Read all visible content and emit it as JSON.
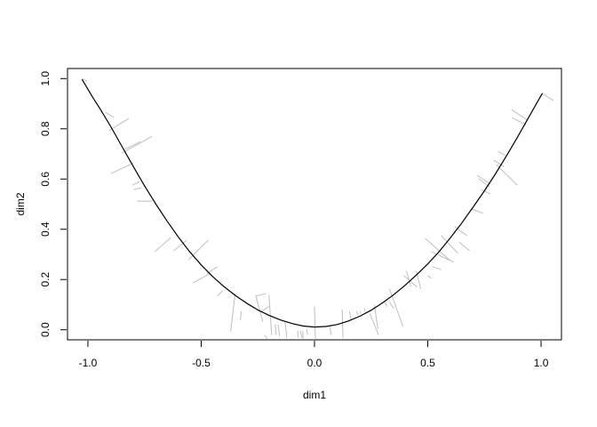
{
  "figure": {
    "background": "#ffffff"
  },
  "colors": {
    "curve": "#000000",
    "whiskers": "#bebebe",
    "axis": "#000000",
    "text": "#000000",
    "background": "#ffffff"
  },
  "chart_data": {
    "type": "line",
    "title": "",
    "xlabel": "dim1",
    "ylabel": "dim2",
    "xlim": [
      -1.09,
      1.09
    ],
    "ylim": [
      -0.04,
      1.04
    ],
    "grid": false,
    "legend": null,
    "x_ticks": [
      -1.0,
      -0.5,
      0.0,
      0.5,
      1.0
    ],
    "x_tick_labels": [
      "-1.0",
      "-0.5",
      "0.0",
      "0.5",
      "1.0"
    ],
    "y_ticks": [
      0.0,
      0.2,
      0.4,
      0.6,
      0.8,
      1.0
    ],
    "y_tick_labels": [
      "0.0",
      "0.2",
      "0.4",
      "0.6",
      "0.8",
      "1.0"
    ],
    "series": [
      {
        "name": "principal-curve",
        "type": "line",
        "color": "#000000",
        "points": [
          [
            -1.025,
            0.995
          ],
          [
            -0.975,
            0.92
          ],
          [
            -0.95,
            0.885
          ],
          [
            -0.9,
            0.81
          ],
          [
            -0.85,
            0.73
          ],
          [
            -0.8,
            0.65
          ],
          [
            -0.75,
            0.573
          ],
          [
            -0.7,
            0.5
          ],
          [
            -0.65,
            0.432
          ],
          [
            -0.6,
            0.368
          ],
          [
            -0.55,
            0.31
          ],
          [
            -0.5,
            0.258
          ],
          [
            -0.45,
            0.212
          ],
          [
            -0.4,
            0.172
          ],
          [
            -0.35,
            0.137
          ],
          [
            -0.3,
            0.106
          ],
          [
            -0.25,
            0.079
          ],
          [
            -0.2,
            0.057
          ],
          [
            -0.15,
            0.039
          ],
          [
            -0.1,
            0.025
          ],
          [
            -0.05,
            0.015
          ],
          [
            0.0,
            0.011
          ],
          [
            0.05,
            0.013
          ],
          [
            0.1,
            0.021
          ],
          [
            0.15,
            0.035
          ],
          [
            0.2,
            0.054
          ],
          [
            0.25,
            0.078
          ],
          [
            0.3,
            0.107
          ],
          [
            0.35,
            0.14
          ],
          [
            0.4,
            0.177
          ],
          [
            0.45,
            0.218
          ],
          [
            0.5,
            0.262
          ],
          [
            0.55,
            0.311
          ],
          [
            0.6,
            0.366
          ],
          [
            0.65,
            0.425
          ],
          [
            0.7,
            0.488
          ],
          [
            0.75,
            0.553
          ],
          [
            0.8,
            0.622
          ],
          [
            0.85,
            0.696
          ],
          [
            0.9,
            0.773
          ],
          [
            0.95,
            0.853
          ],
          [
            1.005,
            0.94
          ]
        ]
      },
      {
        "name": "whiskers",
        "type": "segments",
        "color": "#bebebe",
        "segments": [
          [
            -1.028,
            1.0,
            -1.004,
            0.99
          ],
          [
            -0.925,
            0.866,
            -0.886,
            0.845
          ],
          [
            -0.909,
            0.792,
            -0.819,
            0.841
          ],
          [
            -0.85,
            0.703,
            -0.717,
            0.77
          ],
          [
            -0.839,
            0.717,
            -0.768,
            0.749
          ],
          [
            -0.898,
            0.622,
            -0.799,
            0.664
          ],
          [
            -0.803,
            0.576,
            -0.772,
            0.59
          ],
          [
            -0.799,
            0.558,
            -0.764,
            0.565
          ],
          [
            -0.783,
            0.512,
            -0.717,
            0.512
          ],
          [
            -0.705,
            0.311,
            -0.634,
            0.367
          ],
          [
            -0.622,
            0.314,
            -0.563,
            0.357
          ],
          [
            -0.555,
            0.279,
            -0.469,
            0.357
          ],
          [
            -0.535,
            0.187,
            -0.457,
            0.226
          ],
          [
            -0.476,
            0.223,
            -0.429,
            0.251
          ],
          [
            -0.429,
            0.134,
            -0.406,
            0.155
          ],
          [
            -0.37,
            -0.007,
            -0.35,
            0.145
          ],
          [
            -0.327,
            0.039,
            -0.323,
            0.074
          ],
          [
            -0.26,
            0.134,
            -0.213,
            0.145
          ],
          [
            -0.232,
            0.074,
            -0.201,
            0.092
          ],
          [
            -0.22,
            -0.021,
            -0.209,
            -0.035
          ],
          [
            -0.26,
            0.138,
            -0.228,
            0.032
          ],
          [
            -0.201,
            0.138,
            -0.189,
            -0.021
          ],
          [
            -0.173,
            0.021,
            -0.169,
            -0.021
          ],
          [
            -0.161,
            0.021,
            -0.154,
            -0.025
          ],
          [
            -0.13,
            0.032,
            -0.122,
            -0.032
          ],
          [
            -0.075,
            -0.004,
            -0.071,
            -0.032
          ],
          [
            -0.063,
            -0.004,
            -0.055,
            -0.032
          ],
          [
            -0.051,
            -0.004,
            -0.051,
            -0.035
          ],
          [
            -0.035,
            0.004,
            -0.031,
            -0.021
          ],
          [
            0.0,
            0.092,
            0.004,
            -0.035
          ],
          [
            0.067,
            0.014,
            0.075,
            -0.021
          ],
          [
            0.122,
            0.081,
            0.126,
            -0.032
          ],
          [
            0.154,
            0.074,
            0.161,
            0.039
          ],
          [
            0.185,
            0.074,
            0.193,
            0.057
          ],
          [
            0.201,
            0.074,
            0.205,
            0.064
          ],
          [
            0.22,
            0.085,
            0.224,
            0.074
          ],
          [
            0.264,
            0.099,
            0.28,
            0.004
          ],
          [
            0.311,
            0.11,
            0.319,
            0.092
          ],
          [
            0.244,
            0.064,
            0.283,
            -0.021
          ],
          [
            0.331,
            0.163,
            0.39,
            0.014
          ],
          [
            0.331,
            0.11,
            0.35,
            0.085
          ],
          [
            0.406,
            0.233,
            0.425,
            0.173
          ],
          [
            0.394,
            0.216,
            0.453,
            0.17
          ],
          [
            0.449,
            0.233,
            0.469,
            0.163
          ],
          [
            0.488,
            0.364,
            0.598,
            0.276
          ],
          [
            0.516,
            0.311,
            0.614,
            0.269
          ],
          [
            0.559,
            0.375,
            0.634,
            0.304
          ],
          [
            0.52,
            0.251,
            0.559,
            0.24
          ],
          [
            0.5,
            0.216,
            0.516,
            0.205
          ],
          [
            0.618,
            0.41,
            0.673,
            0.375
          ],
          [
            0.638,
            0.35,
            0.685,
            0.314
          ],
          [
            0.87,
            0.876,
            0.941,
            0.834
          ],
          [
            0.87,
            0.845,
            0.933,
            0.816
          ],
          [
            0.811,
            0.71,
            0.843,
            0.693
          ],
          [
            0.791,
            0.675,
            0.835,
            0.65
          ],
          [
            0.803,
            0.657,
            0.894,
            0.576
          ],
          [
            0.717,
            0.615,
            0.776,
            0.58
          ],
          [
            0.724,
            0.601,
            0.772,
            0.569
          ],
          [
            0.736,
            0.558,
            0.776,
            0.541
          ],
          [
            0.693,
            0.481,
            0.744,
            0.463
          ],
          [
            1.004,
            0.94,
            1.055,
            0.912
          ]
        ]
      }
    ]
  }
}
